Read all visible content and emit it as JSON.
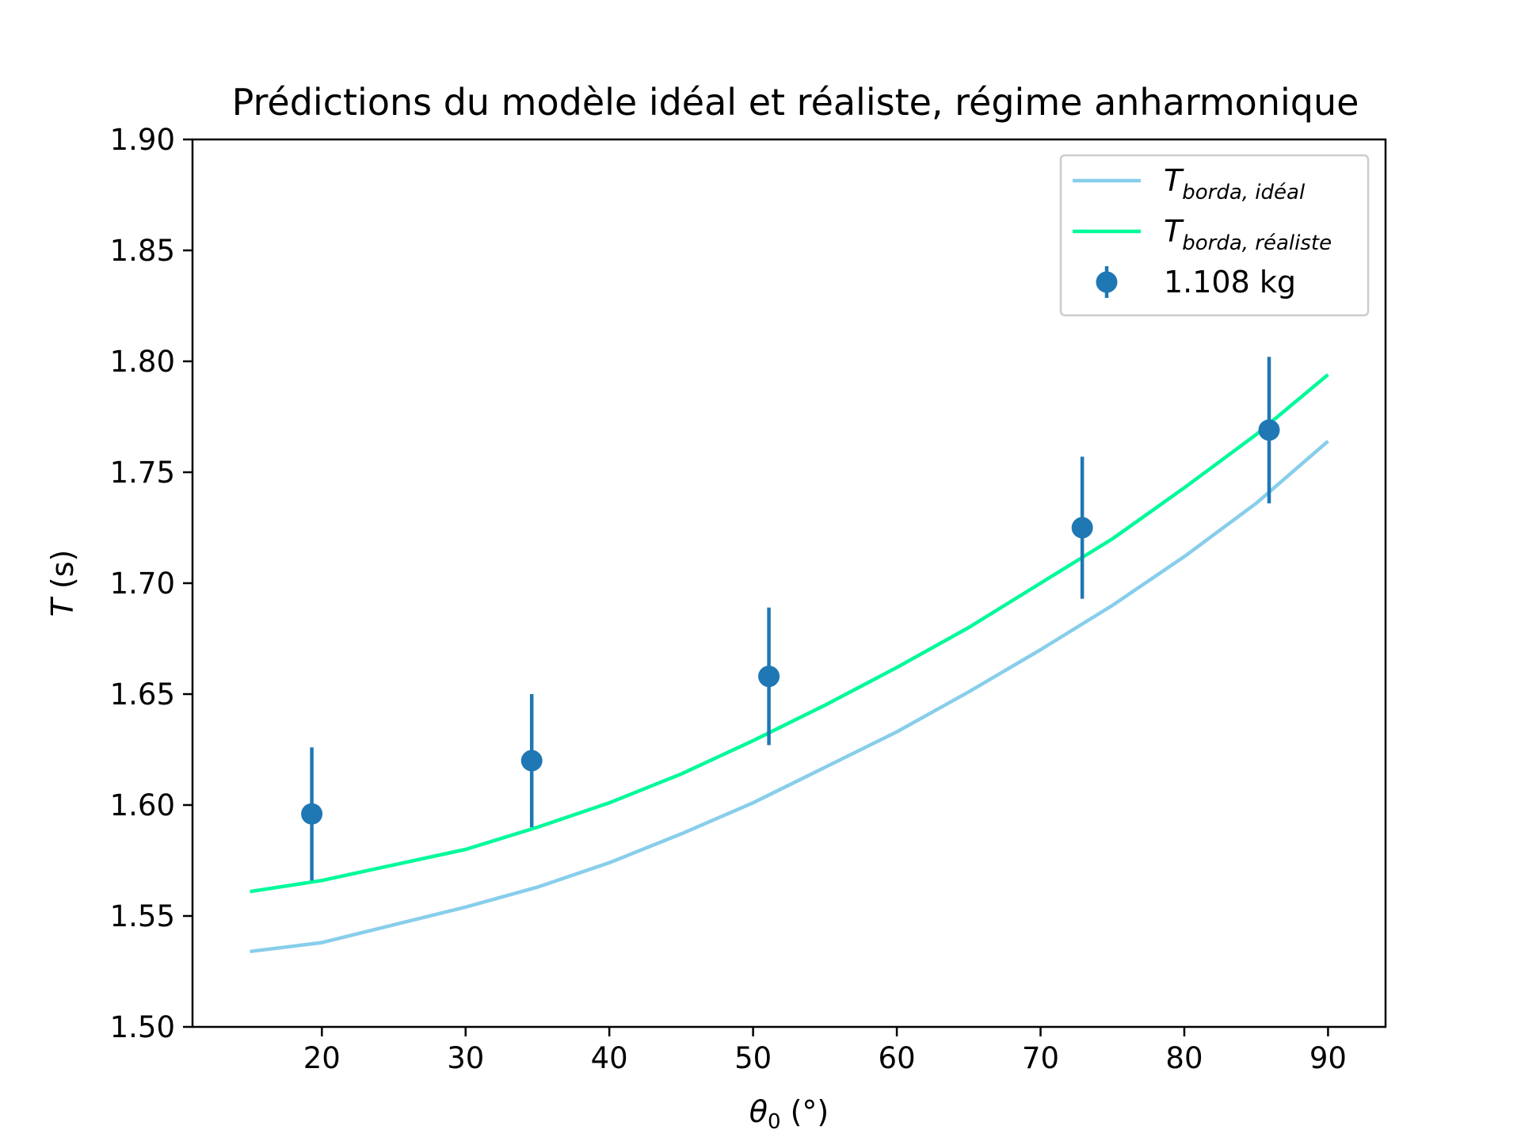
{
  "chart_data": {
    "type": "line",
    "title": "Prédictions du modèle idéal et réaliste, régime anharmonique",
    "xlabel": {
      "main": "θ",
      "sub": "0",
      "unit": " (°)"
    },
    "ylabel": {
      "main": "T",
      "unit": " (s)"
    },
    "xlim": [
      11,
      94
    ],
    "ylim": [
      1.5,
      1.9
    ],
    "xticks": [
      "20",
      "30",
      "40",
      "50",
      "60",
      "70",
      "80",
      "90"
    ],
    "yticks": [
      "1.50",
      "1.55",
      "1.60",
      "1.65",
      "1.70",
      "1.75",
      "1.80",
      "1.85",
      "1.90"
    ],
    "grid": false,
    "legend_position": "top-right",
    "series": [
      {
        "name": {
          "main": "T",
          "sub": "borda, idéal"
        },
        "kind": "line",
        "color": "#87CEEB",
        "x": [
          15,
          20,
          25,
          30,
          35,
          40,
          45,
          50,
          55,
          60,
          65,
          70,
          75,
          80,
          85,
          90
        ],
        "y": [
          1.534,
          1.538,
          1.546,
          1.554,
          1.563,
          1.574,
          1.587,
          1.601,
          1.617,
          1.633,
          1.651,
          1.67,
          1.69,
          1.712,
          1.736,
          1.764
        ]
      },
      {
        "name": {
          "main": "T",
          "sub": "borda, réaliste"
        },
        "kind": "line",
        "color": "#00FA9A",
        "x": [
          15,
          20,
          25,
          30,
          35,
          40,
          45,
          50,
          55,
          60,
          65,
          70,
          75,
          80,
          85,
          90
        ],
        "y": [
          1.561,
          1.566,
          1.573,
          1.58,
          1.59,
          1.601,
          1.614,
          1.629,
          1.645,
          1.662,
          1.68,
          1.7,
          1.72,
          1.743,
          1.767,
          1.794
        ]
      },
      {
        "name": {
          "main": "1.108 kg",
          "sub": ""
        },
        "kind": "errorbar",
        "color": "#1f77b4",
        "x": [
          19.3,
          34.6,
          51.1,
          72.9,
          85.9
        ],
        "y": [
          1.596,
          1.62,
          1.658,
          1.725,
          1.769
        ],
        "yerr": [
          0.03,
          0.03,
          0.031,
          0.032,
          0.033
        ]
      }
    ]
  }
}
